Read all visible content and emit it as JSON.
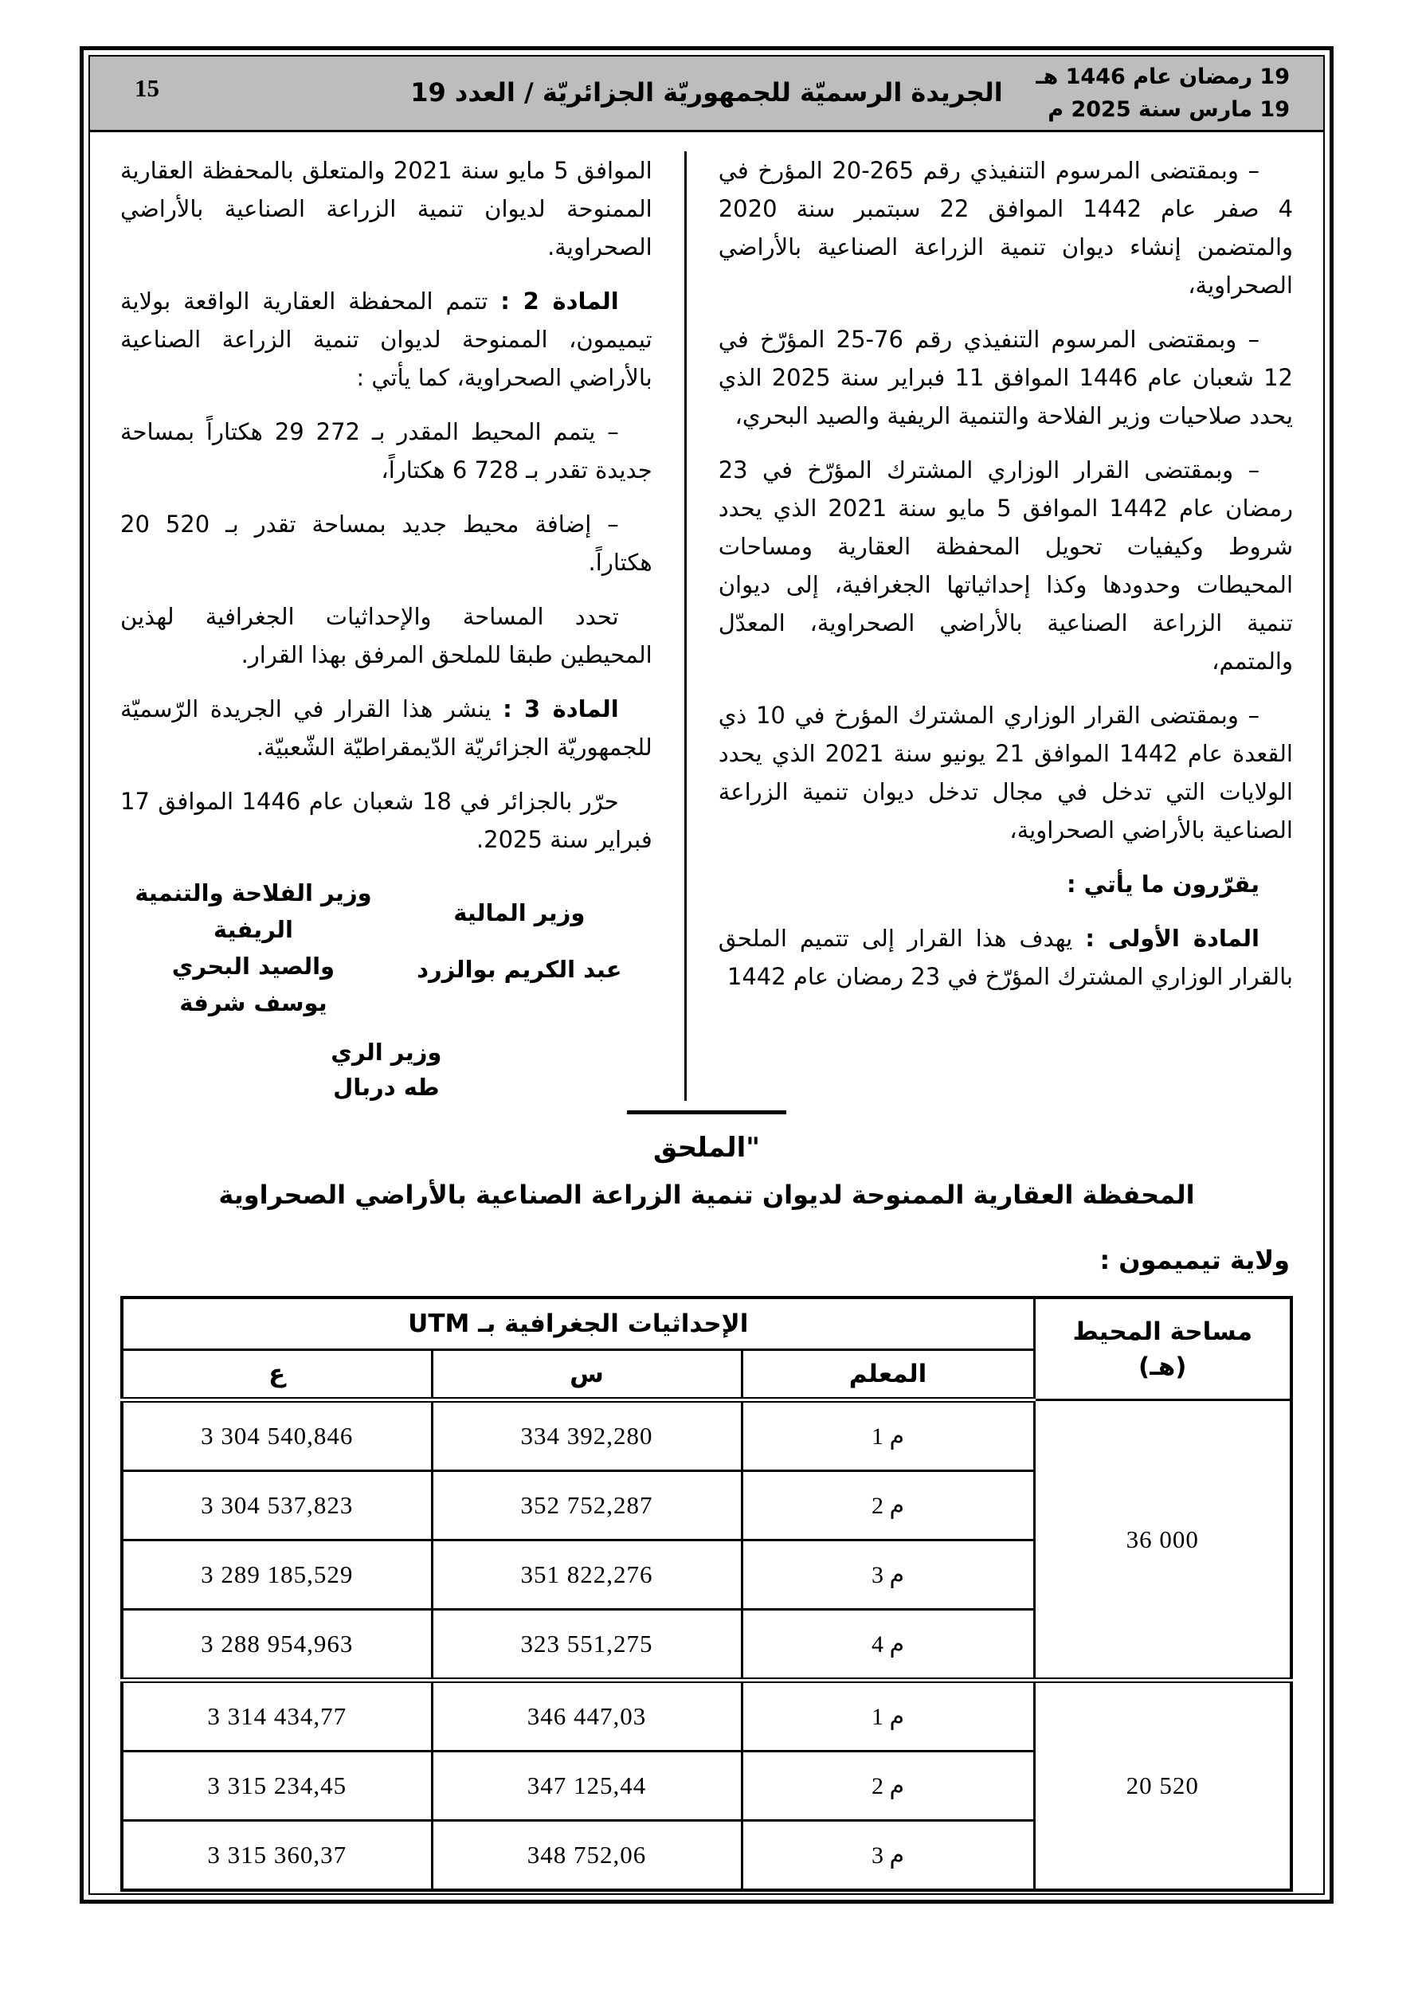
{
  "masthead": {
    "date_hijri": "19 رمضان عام 1446 هـ",
    "date_gregorian": "19 مارس سنة 2025 م",
    "title": "الجريدة الرسميّة للجمهوريّة الجزائريّة / العدد 19",
    "page_number": "15"
  },
  "decree": {
    "right_column": {
      "p1": "– وبمقتضى المرسوم التنفيذي رقم 265-20 المؤرخ في 4 صفر عام 1442 الموافق 22 سبتمبر سنة 2020 والمتضمن إنشاء ديوان تنمية الزراعة الصناعية بالأراضي الصحراوية،",
      "p2": "– وبمقتضى المرسوم التنفيذي رقم 76-25 المؤرّخ في 12 شعبان عام 1446 الموافق 11 فبراير سنة 2025 الذي يحدد صلاحيات وزير الفلاحة والتنمية الريفية والصيد البحري،",
      "p3": "– وبمقتضى القرار الوزاري المشترك المؤرّخ في 23 رمضان عام 1442 الموافق 5 مايو سنة 2021 الذي يحدد شروط وكيفيات تحويل المحفظة العقارية ومساحات المحيطات وحدودها وكذا إحداثياتها الجغرافية، إلى ديوان تنمية الزراعة الصناعية بالأراضي الصحراوية، المعدّل والمتمم،",
      "p4": "– وبمقتضى القرار الوزاري المشترك المؤرخ في 10 ذي القعدة عام 1442 الموافق 21 يونيو سنة 2021 الذي يحدد الولايات التي تدخل في مجال تدخل ديوان تنمية الزراعة الصناعية بالأراضي الصحراوية،",
      "decide": "يقرّرون ما يأتي :",
      "article1_lead": "المادة الأولى :",
      "article1_text": " يهدف هذا القرار إلى تتميم الملحق بالقرار الوزاري المشترك المؤرّخ في 23 رمضان عام 1442"
    },
    "left_column": {
      "p1": "الموافق 5 مايو سنة 2021 والمتعلق بالمحفظة العقارية الممنوحة لديوان تنمية الزراعة الصناعية بالأراضي الصحراوية.",
      "article2_lead": "المادة 2 :",
      "article2_text": " تتمم المحفظة العقارية الواقعة بولاية تيميمون، الممنوحة لديوان تنمية الزراعة الصناعية بالأراضي الصحراوية، كما يأتي :",
      "bullet1": "– يتمم المحيط المقدر بـ 29 272 هكتاراً بمساحة جديدة تقدر بـ 6 728 هكتاراً،",
      "bullet2": "– إضافة محيط جديد بمساحة تقدر بـ 20 520 هكتاراً.",
      "p5": "تحدد المساحة والإحداثيات الجغرافية لهذين المحيطين طبقا للملحق المرفق بهذا القرار.",
      "article3_lead": "المادة 3 :",
      "article3_text": " ينشر هذا القرار في الجريدة الرّسميّة للجمهوريّة الجزائريّة الدّيمقراطيّة الشّعبيّة.",
      "signed": "حرّر بالجزائر في 18 شعبان عام 1446 الموافق 17 فبراير سنة 2025."
    },
    "signatures": {
      "finance_title": "وزير المالية",
      "finance_name": "عبد الكريم بوالزرد",
      "agriculture_title_1": "وزير الفلاحة والتنمية الريفية",
      "agriculture_title_2": "والصيد البحري",
      "agriculture_name": "يوسف شرفة",
      "water_title": "وزير الري",
      "water_name": "طه دربال"
    }
  },
  "annex": {
    "heading": "\"الملحق",
    "subtitle": "المحفظة العقارية الممنوحة لديوان تنمية الزراعة الصناعية بالأراضي الصحراوية",
    "wilaya": "ولاية تيميمون :"
  },
  "table": {
    "utm_header": "الإحداثيات الجغرافية بـ UTM",
    "area_header": [
      "مساحة المحيط",
      "(هـ)"
    ],
    "columns": [
      "المعلم",
      "س",
      "ع"
    ],
    "groups": [
      {
        "area": "36 000",
        "rows": [
          {
            "marker": "م 1",
            "x": "334 392,280",
            "y": "3 304 540,846"
          },
          {
            "marker": "م 2",
            "x": "352 752,287",
            "y": "3 304 537,823"
          },
          {
            "marker": "م 3",
            "x": "351 822,276",
            "y": "3 289 185,529"
          },
          {
            "marker": "م 4",
            "x": "323 551,275",
            "y": "3 288 954,963"
          }
        ]
      },
      {
        "area": "20 520",
        "rows": [
          {
            "marker": "م 1",
            "x": "346 447,03",
            "y": "3 314 434,77"
          },
          {
            "marker": "م 2",
            "x": "347 125,44",
            "y": "3 315 234,45"
          },
          {
            "marker": "م 3",
            "x": "348 752,06",
            "y": "3 315 360,37"
          }
        ]
      }
    ]
  }
}
